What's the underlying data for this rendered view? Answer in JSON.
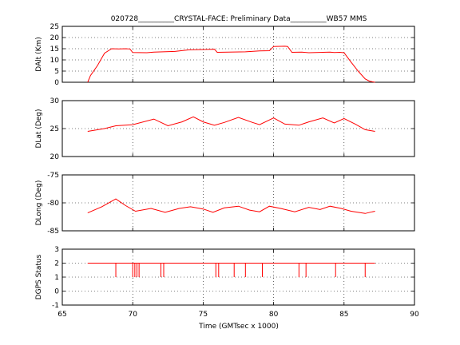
{
  "chart_data": {
    "type": "line",
    "title": "020728__________CRYSTAL-FACE: Preliminary Data__________WB57 MMS",
    "xlabel": "Time (GMTsec x 1000)",
    "xlim": [
      65,
      90
    ],
    "xticks": [
      65,
      70,
      75,
      80,
      85,
      90
    ],
    "grid": true,
    "color": "#ff0000",
    "panels": [
      {
        "ylabel": "DAlt (Km)",
        "ylim": [
          0,
          25
        ],
        "yticks": [
          0,
          5,
          10,
          15,
          20,
          25
        ],
        "series": [
          {
            "x": [
              66.8,
              67.0,
              67.5,
              68.0,
              68.5,
              69.0,
              69.5,
              69.8,
              70.0,
              71.0,
              71.5,
              73.0,
              74.0,
              75.5,
              75.8,
              76.0,
              78.0,
              79.0,
              79.7,
              80.0,
              80.8,
              81.0,
              81.3,
              82.0,
              82.5,
              83.0,
              84.0,
              84.3,
              84.7,
              85.0,
              85.5,
              86.0,
              86.5,
              86.8,
              87.0,
              87.2
            ],
            "y": [
              0.0,
              3.0,
              7.5,
              13.0,
              15.0,
              14.9,
              15.0,
              14.9,
              13.3,
              13.2,
              13.5,
              13.8,
              14.5,
              14.7,
              14.8,
              13.4,
              13.6,
              14.0,
              14.1,
              16.0,
              16.1,
              16.0,
              13.4,
              13.5,
              13.2,
              13.3,
              13.5,
              13.3,
              13.4,
              13.2,
              9.0,
              5.0,
              1.5,
              0.5,
              0.2,
              0.0
            ]
          }
        ]
      },
      {
        "ylabel": "DLat (Deg)",
        "ylim": [
          20,
          30
        ],
        "yticks": [
          20,
          25,
          30
        ],
        "series": [
          {
            "x": [
              66.8,
              68.0,
              68.8,
              70.0,
              71.5,
              72.5,
              73.5,
              74.3,
              75.0,
              75.8,
              76.5,
              77.5,
              78.5,
              79.0,
              80.0,
              80.8,
              81.8,
              82.5,
              83.5,
              84.3,
              85.0,
              85.8,
              86.5,
              87.2
            ],
            "y": [
              24.5,
              25.0,
              25.5,
              25.7,
              26.7,
              25.5,
              26.2,
              27.1,
              26.2,
              25.6,
              26.1,
              27.0,
              26.1,
              25.7,
              26.9,
              25.8,
              25.6,
              26.2,
              26.9,
              26.0,
              26.8,
              25.8,
              24.8,
              24.5
            ]
          }
        ]
      },
      {
        "ylabel": "DLong (Deg)",
        "ylim": [
          -85,
          -75
        ],
        "yticks": [
          -85,
          -80,
          -75
        ],
        "series": [
          {
            "x": [
              66.8,
              67.8,
              68.8,
              69.5,
              70.2,
              71.3,
              72.3,
              73.3,
              74.1,
              75.0,
              75.7,
              76.5,
              77.5,
              78.3,
              79.0,
              79.7,
              80.5,
              81.5,
              82.5,
              83.3,
              84.0,
              84.8,
              85.5,
              86.5,
              87.0,
              87.2
            ],
            "y": [
              -81.8,
              -80.7,
              -79.3,
              -80.5,
              -81.5,
              -81.0,
              -81.7,
              -81.0,
              -80.7,
              -81.1,
              -81.7,
              -80.9,
              -80.6,
              -81.3,
              -81.6,
              -80.6,
              -81.0,
              -81.6,
              -80.8,
              -81.2,
              -80.6,
              -81.0,
              -81.5,
              -81.9,
              -81.6,
              -81.5
            ]
          }
        ]
      },
      {
        "ylabel": "DGPS Status",
        "ylim": [
          -1,
          3
        ],
        "yticks": [
          -1,
          0,
          1,
          2,
          3
        ],
        "baseline": 2,
        "x_range": [
          66.8,
          87.2
        ],
        "drops": [
          {
            "x": 68.8,
            "y": 1
          },
          {
            "x": 70.0,
            "y": 1
          },
          {
            "x": 70.15,
            "y": 1
          },
          {
            "x": 70.3,
            "y": 1
          },
          {
            "x": 70.45,
            "y": 1
          },
          {
            "x": 72.0,
            "y": 1
          },
          {
            "x": 72.2,
            "y": 1
          },
          {
            "x": 75.9,
            "y": 1
          },
          {
            "x": 76.1,
            "y": 1
          },
          {
            "x": 77.2,
            "y": 1
          },
          {
            "x": 78.0,
            "y": 1
          },
          {
            "x": 79.2,
            "y": 1
          },
          {
            "x": 81.8,
            "y": 1
          },
          {
            "x": 82.3,
            "y": 1
          },
          {
            "x": 84.4,
            "y": 1
          },
          {
            "x": 86.5,
            "y": 1
          }
        ]
      }
    ]
  }
}
